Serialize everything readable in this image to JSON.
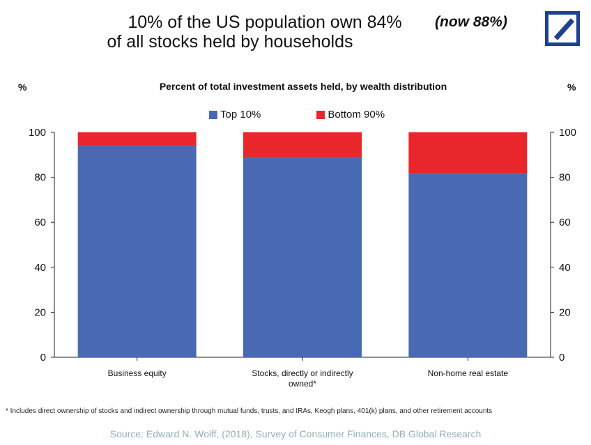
{
  "headline": {
    "line1": "10% of the US population own 84%",
    "line2": "of all stocks held by households",
    "note": "(now 88%)"
  },
  "colors": {
    "top": "#4a69b3",
    "bottom": "#e8262b",
    "logo": "#1f3f8f"
  },
  "chart_data": {
    "type": "bar",
    "stacked": true,
    "title": "Percent of total investment assets held, by wealth distribution",
    "ylabel_left": "%",
    "ylabel_right": "%",
    "ylim": [
      0,
      100
    ],
    "yticks": [
      0,
      20,
      40,
      60,
      80,
      100
    ],
    "categories": [
      "Business equity",
      "Stocks, directly or indirectly owned*",
      "Non-home real estate"
    ],
    "category_lines": [
      [
        "Business equity"
      ],
      [
        "Stocks, directly or indirectly",
        "owned*"
      ],
      [
        "Non-home real estate"
      ]
    ],
    "series": [
      {
        "name": "Top 10%",
        "values": [
          94,
          89,
          81.5
        ]
      },
      {
        "name": "Bottom 90%",
        "values": [
          6,
          11,
          18.5
        ]
      }
    ],
    "legend_position": "top-center",
    "grid": false
  },
  "footnote": "* Includes direct ownership of stocks and indirect ownership through mutual funds, trusts, and IRAs, Keogh plans, 401(k) plans, and other retirement accounts",
  "source": "Source: Edward N. Wolff, (2018), Survey of Consumer Finances, DB Global Research"
}
